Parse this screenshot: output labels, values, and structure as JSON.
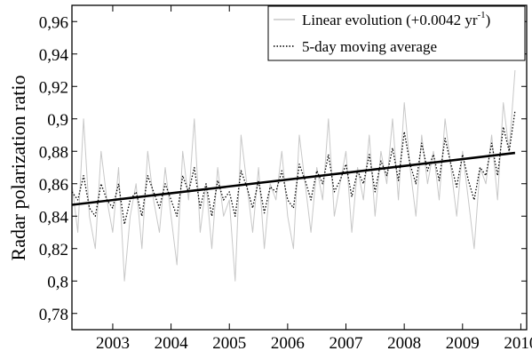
{
  "chart_data": {
    "type": "line",
    "title": "",
    "xlabel": "",
    "ylabel": "Radar polarization ratio",
    "xlim": [
      2002.3,
      2010.1
    ],
    "ylim": [
      0.77,
      0.97
    ],
    "x_ticks": [
      "2003",
      "2004",
      "2005",
      "2006",
      "2007",
      "2008",
      "2009",
      "2010"
    ],
    "y_ticks": [
      "0,78",
      "0,8",
      "0,82",
      "0,84",
      "0,86",
      "0,88",
      "0,9",
      "0,92",
      "0,94",
      "0,96"
    ],
    "legend": {
      "placement": "top-right",
      "entries": [
        {
          "label": "Linear evolution (+0.0042 yr",
          "superscript": "-1",
          "suffix": ")",
          "style": "gray-thin"
        },
        {
          "label": "5-day moving average",
          "style": "black-dotted"
        }
      ]
    },
    "series": [
      {
        "style": "gray-thin",
        "x": [
          2002.3,
          2002.4,
          2002.5,
          2002.6,
          2002.7,
          2002.8,
          2002.9,
          2003.0,
          2003.1,
          2003.2,
          2003.3,
          2003.4,
          2003.5,
          2003.6,
          2003.7,
          2003.8,
          2003.9,
          2004.0,
          2004.1,
          2004.2,
          2004.3,
          2004.4,
          2004.5,
          2004.6,
          2004.7,
          2004.8,
          2004.9,
          2005.0,
          2005.1,
          2005.2,
          2005.3,
          2005.4,
          2005.5,
          2005.6,
          2005.7,
          2005.8,
          2005.9,
          2006.0,
          2006.1,
          2006.2,
          2006.3,
          2006.4,
          2006.5,
          2006.6,
          2006.7,
          2006.8,
          2006.9,
          2007.0,
          2007.1,
          2007.2,
          2007.3,
          2007.4,
          2007.5,
          2007.6,
          2007.7,
          2007.8,
          2007.9,
          2008.0,
          2008.1,
          2008.2,
          2008.3,
          2008.4,
          2008.5,
          2008.6,
          2008.7,
          2008.8,
          2008.9,
          2009.0,
          2009.1,
          2009.2,
          2009.3,
          2009.4,
          2009.5,
          2009.6,
          2009.7,
          2009.8,
          2009.9
        ],
        "y": [
          0.86,
          0.83,
          0.9,
          0.84,
          0.82,
          0.88,
          0.85,
          0.83,
          0.87,
          0.8,
          0.84,
          0.86,
          0.82,
          0.88,
          0.85,
          0.83,
          0.87,
          0.84,
          0.81,
          0.88,
          0.85,
          0.9,
          0.83,
          0.86,
          0.82,
          0.87,
          0.84,
          0.85,
          0.8,
          0.89,
          0.86,
          0.83,
          0.87,
          0.82,
          0.86,
          0.85,
          0.88,
          0.84,
          0.82,
          0.89,
          0.86,
          0.83,
          0.87,
          0.85,
          0.9,
          0.84,
          0.86,
          0.88,
          0.83,
          0.87,
          0.85,
          0.89,
          0.84,
          0.88,
          0.86,
          0.9,
          0.85,
          0.91,
          0.87,
          0.84,
          0.89,
          0.86,
          0.88,
          0.85,
          0.9,
          0.87,
          0.84,
          0.88,
          0.85,
          0.82,
          0.87,
          0.86,
          0.89,
          0.85,
          0.91,
          0.88,
          0.93
        ]
      },
      {
        "style": "black-dotted",
        "x": [
          2002.3,
          2002.4,
          2002.5,
          2002.6,
          2002.7,
          2002.8,
          2002.9,
          2003.0,
          2003.1,
          2003.2,
          2003.3,
          2003.4,
          2003.5,
          2003.6,
          2003.7,
          2003.8,
          2003.9,
          2004.0,
          2004.1,
          2004.2,
          2004.3,
          2004.4,
          2004.5,
          2004.6,
          2004.7,
          2004.8,
          2004.9,
          2005.0,
          2005.1,
          2005.2,
          2005.3,
          2005.4,
          2005.5,
          2005.6,
          2005.7,
          2005.8,
          2005.9,
          2006.0,
          2006.1,
          2006.2,
          2006.3,
          2006.4,
          2006.5,
          2006.6,
          2006.7,
          2006.8,
          2006.9,
          2007.0,
          2007.1,
          2007.2,
          2007.3,
          2007.4,
          2007.5,
          2007.6,
          2007.7,
          2007.8,
          2007.9,
          2008.0,
          2008.1,
          2008.2,
          2008.3,
          2008.4,
          2008.5,
          2008.6,
          2008.7,
          2008.8,
          2008.9,
          2009.0,
          2009.1,
          2009.2,
          2009.3,
          2009.4,
          2009.5,
          2009.6,
          2009.7,
          2009.8,
          2009.9
        ],
        "y": [
          0.855,
          0.85,
          0.865,
          0.845,
          0.84,
          0.86,
          0.85,
          0.845,
          0.86,
          0.835,
          0.85,
          0.855,
          0.84,
          0.865,
          0.855,
          0.845,
          0.86,
          0.85,
          0.84,
          0.865,
          0.855,
          0.87,
          0.845,
          0.86,
          0.84,
          0.862,
          0.85,
          0.855,
          0.84,
          0.868,
          0.858,
          0.845,
          0.862,
          0.842,
          0.858,
          0.855,
          0.868,
          0.85,
          0.845,
          0.872,
          0.862,
          0.85,
          0.868,
          0.86,
          0.878,
          0.855,
          0.862,
          0.872,
          0.852,
          0.868,
          0.86,
          0.878,
          0.855,
          0.874,
          0.865,
          0.882,
          0.862,
          0.892,
          0.872,
          0.86,
          0.885,
          0.868,
          0.878,
          0.862,
          0.888,
          0.872,
          0.858,
          0.878,
          0.862,
          0.85,
          0.87,
          0.865,
          0.885,
          0.865,
          0.895,
          0.88,
          0.905
        ]
      },
      {
        "style": "black-solid-thick",
        "x": [
          2002.3,
          2009.9
        ],
        "y": [
          0.847,
          0.879
        ]
      }
    ]
  }
}
